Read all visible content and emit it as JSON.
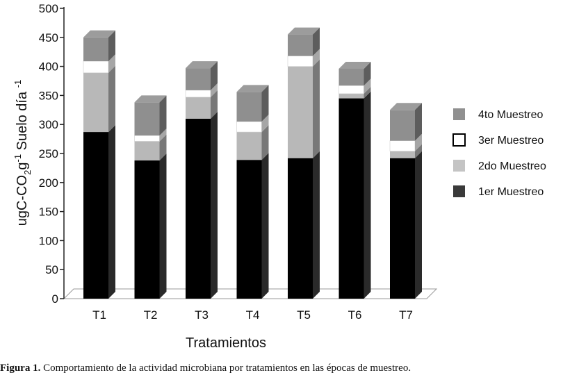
{
  "chart_data": {
    "type": "bar",
    "stacked": true,
    "style": "3d",
    "categories": [
      "T1",
      "T2",
      "T3",
      "T4",
      "T5",
      "T6",
      "T7"
    ],
    "series": [
      {
        "name": "1er Muestreo",
        "color": "#000000",
        "values": [
          287,
          238,
          310,
          239,
          242,
          345,
          242
        ]
      },
      {
        "name": "2do Muestreo",
        "color": "#b8b8b8",
        "values": [
          102,
          33,
          37,
          48,
          158,
          8,
          12
        ]
      },
      {
        "name": "3er Muestreo",
        "color": "#ffffff",
        "values": [
          20,
          10,
          12,
          18,
          18,
          14,
          18
        ]
      },
      {
        "name": "4to Muestreo",
        "color": "#8f8f8f",
        "values": [
          41,
          57,
          38,
          51,
          37,
          29,
          53
        ]
      }
    ],
    "legend_order": [
      "4to Muestreo",
      "3er Muestreo",
      "2do Muestreo",
      "1er Muestreo"
    ],
    "legend_swatch_colors": [
      "#909090",
      "#ffffff",
      "#c4c4c4",
      "#3a3a3a"
    ],
    "xlabel": "Tratamientos",
    "ylabel": {
      "main": "ugC-CO",
      "sub": "2",
      "mid": "g",
      "sup1": "-1",
      "rest": " Suelo día ",
      "sup2": "-1"
    },
    "ylim": [
      0,
      500
    ],
    "yticks": [
      0,
      50,
      100,
      150,
      200,
      250,
      300,
      350,
      400,
      450,
      500
    ],
    "legend_position": "right",
    "grid": false
  },
  "caption": {
    "label": "Figura 1.",
    "text": " Comportamiento de la actividad microbiana por tratamientos en las épocas de muestreo."
  }
}
